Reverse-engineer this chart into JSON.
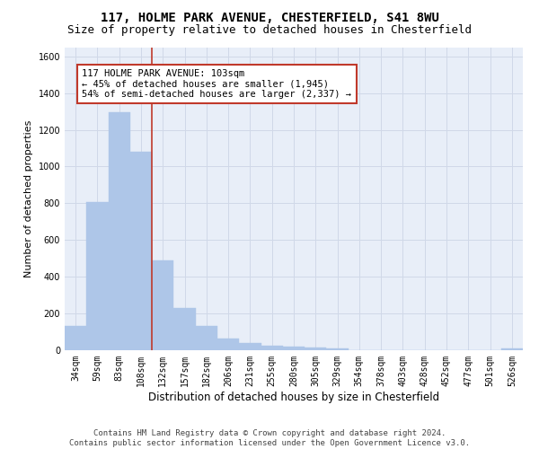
{
  "title_line1": "117, HOLME PARK AVENUE, CHESTERFIELD, S41 8WU",
  "title_line2": "Size of property relative to detached houses in Chesterfield",
  "xlabel": "Distribution of detached houses by size in Chesterfield",
  "ylabel": "Number of detached properties",
  "categories": [
    "34sqm",
    "59sqm",
    "83sqm",
    "108sqm",
    "132sqm",
    "157sqm",
    "182sqm",
    "206sqm",
    "231sqm",
    "255sqm",
    "280sqm",
    "305sqm",
    "329sqm",
    "354sqm",
    "378sqm",
    "403sqm",
    "428sqm",
    "452sqm",
    "477sqm",
    "501sqm",
    "526sqm"
  ],
  "values": [
    134,
    805,
    1295,
    1080,
    490,
    228,
    130,
    65,
    37,
    25,
    18,
    13,
    12,
    0,
    0,
    0,
    0,
    0,
    0,
    0,
    12
  ],
  "bar_color": "#aec6e8",
  "bar_edgecolor": "#aec6e8",
  "vline_color": "#c0392b",
  "vline_index": 3,
  "ylim": [
    0,
    1650
  ],
  "yticks": [
    0,
    200,
    400,
    600,
    800,
    1000,
    1200,
    1400,
    1600
  ],
  "annotation_text": "117 HOLME PARK AVENUE: 103sqm\n← 45% of detached houses are smaller (1,945)\n54% of semi-detached houses are larger (2,337) →",
  "annotation_box_facecolor": "#ffffff",
  "annotation_box_edgecolor": "#c0392b",
  "footer_line1": "Contains HM Land Registry data © Crown copyright and database right 2024.",
  "footer_line2": "Contains public sector information licensed under the Open Government Licence v3.0.",
  "grid_color": "#d0d8e8",
  "background_color": "#e8eef8",
  "title_fontsize": 10,
  "subtitle_fontsize": 9,
  "tick_fontsize": 7,
  "ylabel_fontsize": 8,
  "xlabel_fontsize": 8.5,
  "annotation_fontsize": 7.5,
  "footer_fontsize": 6.5
}
